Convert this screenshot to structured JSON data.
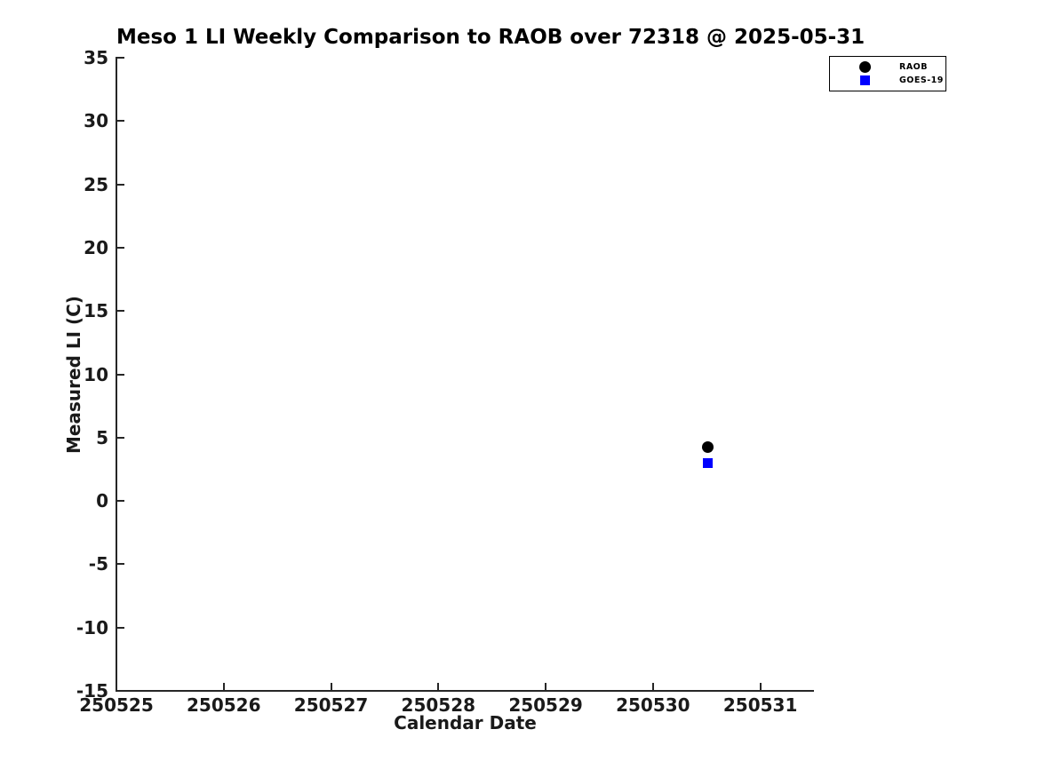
{
  "figure": {
    "background_color": "#ffffff",
    "axis_color": "#262626",
    "text_color": "#1a1a1a"
  },
  "chart_data": {
    "type": "scatter",
    "title": "Meso 1 LI Weekly Comparison to RAOB over 72318 @ 2025-05-31",
    "xlabel": "Calendar Date",
    "ylabel": "Measured LI (C)",
    "xlim": [
      250525,
      250531.5
    ],
    "ylim": [
      -15,
      35
    ],
    "xticks": [
      250525,
      250526,
      250527,
      250528,
      250529,
      250530,
      250531
    ],
    "yticks": [
      35,
      30,
      25,
      20,
      15,
      10,
      5,
      0,
      -5,
      -10,
      -15
    ],
    "grid": false,
    "legend_position": "top-right-outside",
    "series": [
      {
        "name": "RAOB",
        "marker": "circle",
        "color": "#000000",
        "marker_size": 13,
        "points": [
          {
            "x": 250530.51,
            "y": 4.25
          }
        ]
      },
      {
        "name": "GOES-19",
        "marker": "square",
        "color": "#0000ff",
        "marker_size": 11,
        "points": [
          {
            "x": 250530.51,
            "y": 3.0
          }
        ]
      }
    ]
  }
}
